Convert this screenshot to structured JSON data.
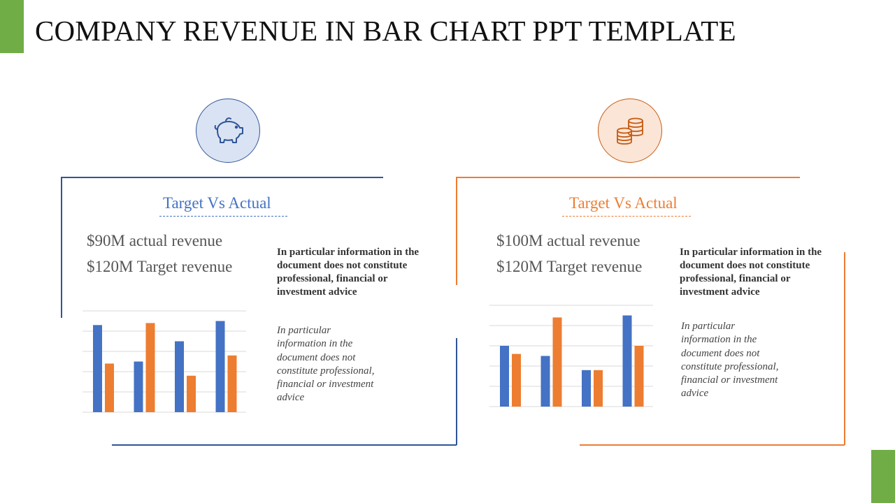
{
  "slide": {
    "title": "COMPANY REVENUE IN BAR CHART PPT TEMPLATE",
    "colors": {
      "green": "#70AD47",
      "blue": "#4472C4",
      "orange": "#ED7D31",
      "blue_light": "#DAE3F3",
      "orange_light": "#FBE5D6"
    }
  },
  "panels": [
    {
      "icon": "piggy-bank-icon",
      "heading": "Target Vs Actual",
      "actual": "$90M actual revenue",
      "target": "$120M Target revenue",
      "bold_text": "In particular information in the document does not constitute professional, financial or investment advice",
      "italic_text": "In particular information in the document does not constitute professional, financial or investment advice"
    },
    {
      "icon": "coins-stack-icon",
      "heading": "Target Vs Actual",
      "actual": "$100M actual revenue",
      "target": "$120M Target revenue",
      "bold_text": "In particular information in the document does not constitute professional, financial or investment advice",
      "italic_text": "In particular information in the document does not constitute professional, financial or investment advice"
    }
  ],
  "chart_data": [
    {
      "type": "bar",
      "categories": [
        "",
        "",
        "",
        ""
      ],
      "series": [
        {
          "values": [
            4.3,
            2.5,
            3.5,
            4.5
          ],
          "color": "#4472C4"
        },
        {
          "values": [
            2.4,
            4.4,
            1.8,
            2.8
          ],
          "color": "#ED7D31"
        }
      ],
      "ylim": [
        0,
        5
      ],
      "grid": true
    },
    {
      "type": "bar",
      "categories": [
        "",
        "",
        "",
        ""
      ],
      "series": [
        {
          "values": [
            3.0,
            2.5,
            1.8,
            4.5
          ],
          "color": "#4472C4"
        },
        {
          "values": [
            2.6,
            4.4,
            1.8,
            3.0
          ],
          "color": "#ED7D31"
        }
      ],
      "ylim": [
        0,
        5
      ],
      "grid": true
    }
  ]
}
